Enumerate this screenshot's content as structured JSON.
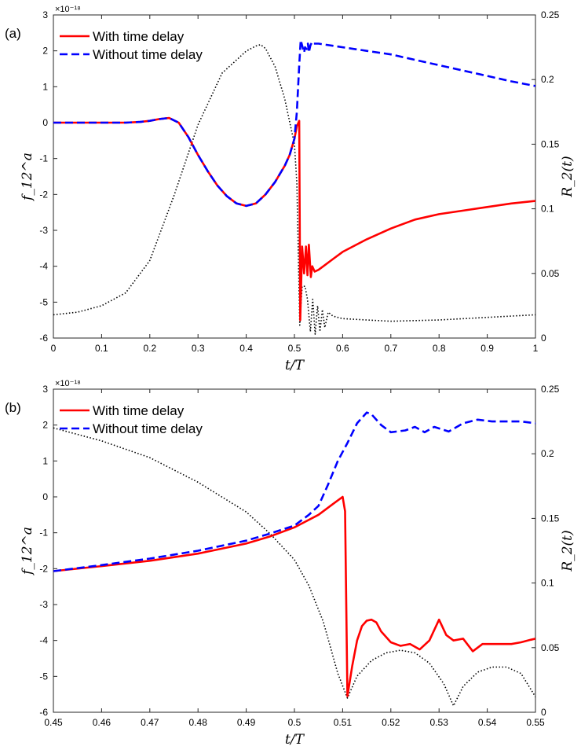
{
  "chart_data": [
    {
      "panel_label": "(a)",
      "type": "line",
      "xlabel": "t/T",
      "ylabel_left": "f_12^a",
      "ylabel_right": "R_2(t)",
      "exponent_label": "×10⁻¹⁸",
      "xlim": [
        0,
        1
      ],
      "ylim_left": [
        -6,
        3
      ],
      "ylim_right": [
        0,
        0.25
      ],
      "xticks": [
        0,
        0.1,
        0.2,
        0.3,
        0.4,
        0.5,
        0.6,
        0.7,
        0.8,
        0.9,
        1
      ],
      "xticklabels": [
        "0",
        "0.1",
        "0.2",
        "0.3",
        "0.4",
        "0.5",
        "0.6",
        "0.7",
        "0.8",
        "0.9",
        "1"
      ],
      "yticks_left": [
        -6,
        -5,
        -4,
        -3,
        -2,
        -1,
        0,
        1,
        2,
        3
      ],
      "yticklabels_left": [
        "-6",
        "-5",
        "-4",
        "-3",
        "-2",
        "-1",
        "0",
        "1",
        "2",
        "3"
      ],
      "yticks_right": [
        0,
        0.05,
        0.1,
        0.15,
        0.2,
        0.25
      ],
      "yticklabels_right": [
        "0",
        "0.05",
        "0.1",
        "0.15",
        "0.2",
        "0.25"
      ],
      "legend_position": "top-left",
      "series": [
        {
          "name": "With time delay",
          "axis": "left",
          "color": "#ff0000",
          "style": "solid",
          "x": [
            0,
            0.05,
            0.1,
            0.15,
            0.18,
            0.2,
            0.22,
            0.24,
            0.26,
            0.28,
            0.3,
            0.32,
            0.34,
            0.36,
            0.38,
            0.4,
            0.42,
            0.44,
            0.46,
            0.48,
            0.49,
            0.5,
            0.505,
            0.51,
            0.512,
            0.516,
            0.52,
            0.524,
            0.527,
            0.53,
            0.534,
            0.537,
            0.542,
            0.55,
            0.56,
            0.58,
            0.6,
            0.65,
            0.7,
            0.75,
            0.8,
            0.85,
            0.9,
            0.95,
            1.0
          ],
          "y": [
            0,
            0,
            0,
            0,
            0.02,
            0.05,
            0.1,
            0.13,
            0.0,
            -0.4,
            -0.9,
            -1.35,
            -1.75,
            -2.05,
            -2.25,
            -2.32,
            -2.25,
            -2.0,
            -1.65,
            -1.2,
            -0.9,
            -0.45,
            -0.1,
            0.05,
            -5.5,
            -3.45,
            -4.2,
            -3.45,
            -4.25,
            -3.4,
            -4.3,
            -4.0,
            -4.15,
            -4.1,
            -4.0,
            -3.8,
            -3.6,
            -3.25,
            -2.95,
            -2.7,
            -2.55,
            -2.45,
            -2.35,
            -2.25,
            -2.18
          ]
        },
        {
          "name": "Without time delay",
          "axis": "left",
          "color": "#0000ff",
          "style": "dashed",
          "x": [
            0,
            0.05,
            0.1,
            0.15,
            0.18,
            0.2,
            0.22,
            0.24,
            0.26,
            0.28,
            0.3,
            0.32,
            0.34,
            0.36,
            0.38,
            0.4,
            0.42,
            0.44,
            0.46,
            0.48,
            0.49,
            0.5,
            0.505,
            0.51,
            0.513,
            0.516,
            0.52,
            0.522,
            0.525,
            0.528,
            0.53,
            0.533,
            0.537,
            0.54,
            0.55,
            0.6,
            0.65,
            0.7,
            0.75,
            0.8,
            0.85,
            0.9,
            0.95,
            1.0
          ],
          "y": [
            0,
            0,
            0,
            0,
            0.02,
            0.05,
            0.1,
            0.13,
            0.0,
            -0.4,
            -0.9,
            -1.35,
            -1.75,
            -2.05,
            -2.25,
            -2.32,
            -2.25,
            -2.0,
            -1.65,
            -1.2,
            -0.9,
            -0.45,
            0.3,
            1.6,
            2.3,
            2.15,
            1.95,
            2.1,
            2.05,
            2.2,
            1.95,
            2.15,
            2.25,
            2.2,
            2.2,
            2.1,
            2.0,
            1.9,
            1.75,
            1.6,
            1.45,
            1.3,
            1.15,
            1.02
          ]
        },
        {
          "axis": "right",
          "color": "#000000",
          "style": "dotted",
          "x": [
            0,
            0.05,
            0.1,
            0.15,
            0.2,
            0.25,
            0.3,
            0.35,
            0.4,
            0.42,
            0.43,
            0.44,
            0.46,
            0.48,
            0.5,
            0.505,
            0.511,
            0.516,
            0.522,
            0.527,
            0.533,
            0.538,
            0.543,
            0.548,
            0.553,
            0.558,
            0.563,
            0.57,
            0.58,
            0.6,
            0.65,
            0.7,
            0.8,
            0.9,
            1.0
          ],
          "y": [
            0.018,
            0.02,
            0.025,
            0.035,
            0.06,
            0.11,
            0.165,
            0.205,
            0.222,
            0.226,
            0.227,
            0.224,
            0.21,
            0.185,
            0.15,
            0.12,
            0.01,
            0.04,
            0.04,
            0.03,
            0.005,
            0.03,
            0.003,
            0.025,
            0.005,
            0.022,
            0.008,
            0.02,
            0.017,
            0.015,
            0.014,
            0.013,
            0.014,
            0.016,
            0.018
          ]
        }
      ]
    },
    {
      "panel_label": "(b)",
      "type": "line",
      "xlabel": "t/T",
      "ylabel_left": "f_12^a",
      "ylabel_right": "R_2(t)",
      "exponent_label": "×10⁻¹⁸",
      "xlim": [
        0.45,
        0.55
      ],
      "ylim_left": [
        -6,
        3
      ],
      "ylim_right": [
        0,
        0.25
      ],
      "xticks": [
        0.45,
        0.46,
        0.47,
        0.48,
        0.49,
        0.5,
        0.51,
        0.52,
        0.53,
        0.54,
        0.55
      ],
      "xticklabels": [
        "0.45",
        "0.46",
        "0.47",
        "0.48",
        "0.49",
        "0.5",
        "0.51",
        "0.52",
        "0.53",
        "0.54",
        "0.55"
      ],
      "yticks_left": [
        -6,
        -5,
        -4,
        -3,
        -2,
        -1,
        0,
        1,
        2,
        3
      ],
      "yticklabels_left": [
        "-6",
        "-5",
        "-4",
        "-3",
        "-2",
        "-1",
        "0",
        "1",
        "2",
        "3"
      ],
      "yticks_right": [
        0,
        0.05,
        0.1,
        0.15,
        0.2,
        0.25
      ],
      "yticklabels_right": [
        "0",
        "0.05",
        "0.1",
        "0.15",
        "0.2",
        "0.25"
      ],
      "legend_position": "top-left",
      "series": [
        {
          "name": "With time delay",
          "axis": "left",
          "color": "#ff0000",
          "style": "solid",
          "x": [
            0.45,
            0.46,
            0.47,
            0.48,
            0.49,
            0.495,
            0.5,
            0.505,
            0.508,
            0.51,
            0.5105,
            0.511,
            0.512,
            0.513,
            0.514,
            0.515,
            0.516,
            0.517,
            0.518,
            0.52,
            0.522,
            0.524,
            0.526,
            0.528,
            0.53,
            0.5315,
            0.533,
            0.535,
            0.537,
            0.539,
            0.541,
            0.543,
            0.545,
            0.547,
            0.549,
            0.55
          ],
          "y": [
            -2.07,
            -1.93,
            -1.78,
            -1.58,
            -1.3,
            -1.1,
            -0.85,
            -0.5,
            -0.2,
            0.0,
            -0.4,
            -5.55,
            -4.7,
            -4.0,
            -3.6,
            -3.45,
            -3.42,
            -3.5,
            -3.75,
            -4.05,
            -4.15,
            -4.1,
            -4.25,
            -4.0,
            -3.42,
            -3.85,
            -4.0,
            -3.95,
            -4.3,
            -4.1,
            -4.1,
            -4.1,
            -4.1,
            -4.05,
            -3.98,
            -3.95
          ]
        },
        {
          "name": "Without time delay",
          "axis": "left",
          "color": "#0000ff",
          "style": "dashed",
          "x": [
            0.45,
            0.46,
            0.47,
            0.48,
            0.49,
            0.495,
            0.5,
            0.503,
            0.505,
            0.507,
            0.509,
            0.511,
            0.513,
            0.515,
            0.516,
            0.518,
            0.52,
            0.523,
            0.525,
            0.527,
            0.529,
            0.532,
            0.535,
            0.538,
            0.541,
            0.544,
            0.547,
            0.55
          ],
          "y": [
            -2.07,
            -1.9,
            -1.72,
            -1.5,
            -1.22,
            -1.02,
            -0.8,
            -0.5,
            -0.25,
            0.35,
            1.0,
            1.5,
            2.05,
            2.35,
            2.3,
            2.0,
            1.8,
            1.85,
            1.95,
            1.8,
            1.95,
            1.82,
            2.05,
            2.15,
            2.1,
            2.1,
            2.1,
            2.05
          ]
        },
        {
          "axis": "right",
          "color": "#000000",
          "style": "dotted",
          "x": [
            0.45,
            0.46,
            0.47,
            0.48,
            0.49,
            0.495,
            0.5,
            0.503,
            0.506,
            0.509,
            0.511,
            0.513,
            0.516,
            0.519,
            0.522,
            0.525,
            0.528,
            0.531,
            0.533,
            0.535,
            0.538,
            0.541,
            0.544,
            0.547,
            0.55
          ],
          "y": [
            0.22,
            0.21,
            0.197,
            0.178,
            0.155,
            0.138,
            0.118,
            0.098,
            0.07,
            0.03,
            0.011,
            0.028,
            0.04,
            0.046,
            0.048,
            0.046,
            0.038,
            0.022,
            0.005,
            0.02,
            0.031,
            0.035,
            0.035,
            0.03,
            0.012
          ]
        }
      ]
    }
  ]
}
